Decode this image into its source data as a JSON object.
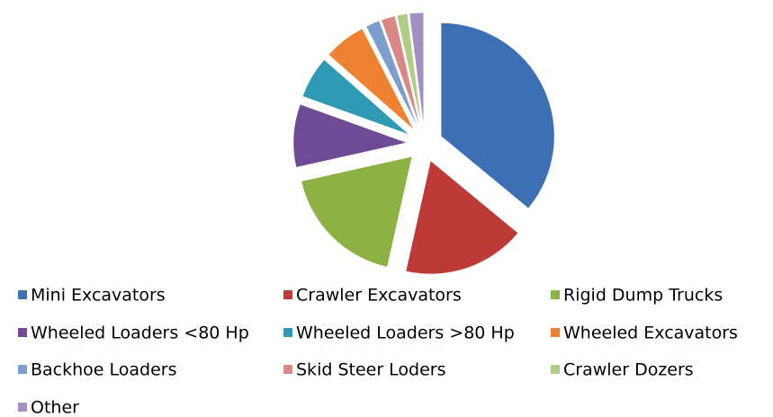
{
  "chart_data": {
    "type": "pie",
    "exploded": true,
    "categories": [
      "Mini Excavators",
      "Crawler Excavators",
      "Rigid Dump Trucks",
      "Wheeled Loaders <80 Hp",
      "Wheeled Loaders >80 Hp",
      "Wheeled Excavators",
      "Backhoe Loaders",
      "Skid Steer Loders",
      "Crawler Dozers",
      "Other"
    ],
    "values": [
      36,
      17.5,
      18,
      9,
      6,
      6,
      2,
      2,
      1.5,
      2
    ],
    "colors": [
      "#3d6fb5",
      "#be3a37",
      "#8db243",
      "#6e4b94",
      "#2f9ab4",
      "#ee8230",
      "#7e9dcf",
      "#d98886",
      "#b0cd85",
      "#a48fc3"
    ],
    "legend": "bottom"
  }
}
